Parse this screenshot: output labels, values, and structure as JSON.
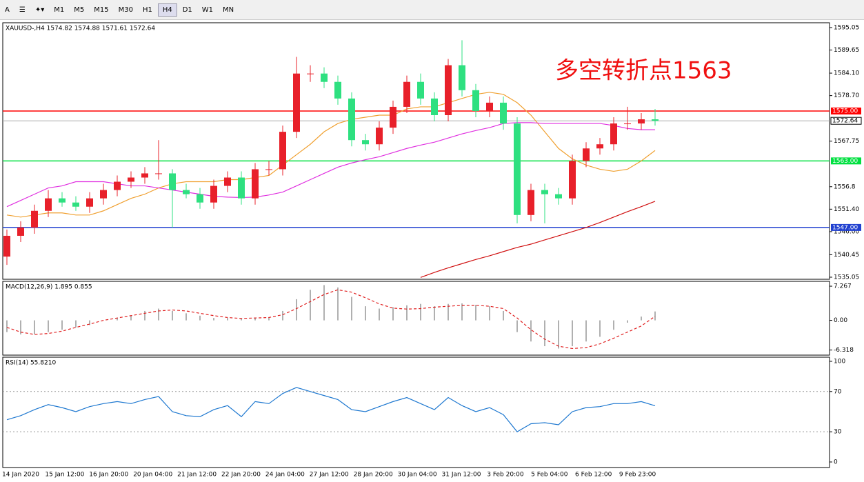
{
  "toolbar": {
    "font": "A",
    "timeframes": [
      "M1",
      "M5",
      "M15",
      "M30",
      "H1",
      "H4",
      "D1",
      "W1",
      "MN"
    ],
    "active": 5
  },
  "chart_data": [
    {
      "type": "candlestick",
      "title": "XAUUSD-,H4 1574.82 1574.88 1571.61 1572.64",
      "annotation": "多空转折点1563",
      "ylim": [
        1534.55,
        1596.21
      ],
      "yticks": [
        1595.05,
        1589.65,
        {
          "value": 1584.1,
          "label": "1584.10"
        },
        {
          "value": 1578.7,
          "label": "1578.70"
        },
        1567.75,
        1556.8,
        {
          "value": 1551.4,
          "label": "1551.40"
        },
        {
          "value": 1546,
          "label": "1546.00"
        },
        1540.45,
        1535.05
      ],
      "open": [
        1540,
        1545,
        1547,
        1551,
        1554,
        1553,
        1552,
        1554,
        1556,
        1558,
        1559,
        1560,
        1560,
        1556,
        1555,
        1553,
        1557,
        1559,
        1554,
        1561,
        1561,
        1570,
        1584,
        1584,
        1582,
        1578,
        1568,
        1567,
        1571,
        1576,
        1582,
        1578,
        1574,
        1586,
        1580,
        1575,
        1577,
        1572,
        1550,
        1556,
        1555,
        1554,
        1563,
        1566,
        1567,
        1572,
        1572,
        1573
      ],
      "high": [
        1546.5,
        1548.5,
        1552.5,
        1556,
        1555.5,
        1554.5,
        1555.5,
        1557.5,
        1559.5,
        1560.5,
        1561.5,
        1568,
        1561,
        1557.5,
        1556.5,
        1558.5,
        1560.5,
        1560.5,
        1562.5,
        1563,
        1571.5,
        1588,
        1586,
        1585.5,
        1583.5,
        1579.5,
        1569.5,
        1572.5,
        1577.5,
        1583.5,
        1584,
        1579.5,
        1587.5,
        1592,
        1581.5,
        1578.5,
        1578.5,
        1573.5,
        1557.5,
        1557.5,
        1556.5,
        1564.5,
        1567.5,
        1568.5,
        1573.5,
        1576,
        1574.5,
        1575.5
      ],
      "low": [
        1538,
        1543.5,
        1545.5,
        1549.5,
        1552,
        1551,
        1550.5,
        1552.5,
        1554.5,
        1556.5,
        1557.5,
        1558.5,
        1547,
        1554,
        1551.5,
        1551.5,
        1555.5,
        1552.5,
        1552.5,
        1559.5,
        1559.5,
        1568.5,
        1582,
        1580.5,
        1576.5,
        1566.5,
        1565.5,
        1565.5,
        1569.5,
        1574.5,
        1576.5,
        1572.5,
        1572.5,
        1578.5,
        1573.5,
        1573.5,
        1570.5,
        1548,
        1548.5,
        1548,
        1552.5,
        1552.5,
        1561.5,
        1564.5,
        1565.5,
        1570.5,
        1570.5,
        1571.5
      ],
      "close": [
        1545,
        1547,
        1551,
        1554,
        1553,
        1552,
        1554,
        1556,
        1558,
        1559,
        1560,
        1560,
        1556,
        1555,
        1553,
        1557,
        1559,
        1554,
        1561,
        1561,
        1570,
        1584,
        1584,
        1582,
        1578,
        1568,
        1567,
        1571,
        1576,
        1582,
        1578,
        1574,
        1586,
        1580,
        1575,
        1577,
        1572,
        1550,
        1556,
        1555,
        1554,
        1563,
        1566,
        1567,
        1572,
        1572,
        1573,
        1572.64
      ],
      "up_color": "#e8202a",
      "down_color": "#2ee080",
      "lines": [
        {
          "color": "#f0a030",
          "values": [
            1550,
            1549.5,
            1550,
            1550.5,
            1550.5,
            1550,
            1550,
            1551,
            1552.5,
            1554,
            1555,
            1556.5,
            1557.5,
            1558,
            1558,
            1558,
            1558.5,
            1558.5,
            1559,
            1559.5,
            1562,
            1564.5,
            1567,
            1570,
            1572,
            1573,
            1573.5,
            1574,
            1574,
            1575.5,
            1576,
            1576,
            1577,
            1578,
            1579,
            1579.5,
            1579,
            1577,
            1574,
            1570,
            1566,
            1563.5,
            1562,
            1561,
            1560.5,
            1561,
            1563,
            1565.5
          ]
        },
        {
          "color": "#e030e0",
          "values": [
            1552,
            1553.5,
            1555,
            1556.5,
            1557,
            1558,
            1558,
            1558,
            1557.5,
            1557,
            1557,
            1556.5,
            1556,
            1555.5,
            1555,
            1554.5,
            1554.3,
            1554.2,
            1554.3,
            1554.8,
            1555.5,
            1557,
            1558.5,
            1560,
            1561.5,
            1562.5,
            1563.3,
            1564,
            1565,
            1566,
            1566.8,
            1567.5,
            1568.5,
            1569.5,
            1570.3,
            1571,
            1572,
            1572.2,
            1572.2,
            1572,
            1572,
            1572,
            1572,
            1572,
            1571.5,
            1570.8,
            1570.5,
            1570.5
          ]
        },
        {
          "color": "#d01010",
          "values": [
            null,
            null,
            null,
            null,
            null,
            null,
            null,
            null,
            null,
            null,
            null,
            null,
            null,
            null,
            null,
            null,
            null,
            null,
            null,
            null,
            null,
            null,
            null,
            null,
            null,
            null,
            null,
            null,
            null,
            null,
            1535,
            1536.2,
            1537.3,
            1538.3,
            1539.3,
            1540.2,
            1541.2,
            1542.2,
            1543,
            1544,
            1545,
            1546,
            1547,
            1548.2,
            1549.5,
            1550.8,
            1552,
            1553.3
          ]
        }
      ],
      "levels": [
        {
          "value": 1575,
          "label": "1575.00",
          "color": "#ff0000"
        },
        {
          "value": 1563,
          "label": "1563.00",
          "color": "#00e040"
        },
        {
          "value": 1547,
          "label": "1547.00",
          "color": "#2040d0"
        }
      ],
      "current": {
        "value": 1572.64,
        "label": "1572.64"
      },
      "x_labels": [
        "14 Jan 2020",
        "15 Jan 12:00",
        "16 Jan 20:00",
        "20 Jan 04:00",
        "21 Jan 12:00",
        "22 Jan 20:00",
        "24 Jan 04:00",
        "27 Jan 12:00",
        "28 Jan 20:00",
        "30 Jan 04:00",
        "31 Jan 12:00",
        "3 Feb 20:00",
        "5 Feb 04:00",
        "6 Feb 12:00",
        "9 Feb 23:00"
      ]
    },
    {
      "type": "macd",
      "title": "MACD(12,26,9) 1.895 0.855",
      "ylim": [
        -7.4,
        8.3
      ],
      "yticks": [
        7.267,
        {
          "value": 0,
          "label": "0.00"
        },
        -6.318
      ],
      "histogram": [
        -2.5,
        -3,
        -3,
        -2.5,
        -2,
        -1.5,
        -1,
        0,
        0.5,
        1,
        2,
        2.5,
        2,
        1.5,
        1,
        0.5,
        0.5,
        0.3,
        0.5,
        0.5,
        2,
        4.5,
        6.5,
        7.5,
        7,
        5,
        3,
        2.5,
        2.8,
        3.2,
        3.5,
        3,
        3.5,
        3.6,
        3.3,
        3,
        2,
        -2.5,
        -4.5,
        -5.5,
        -6,
        -5.5,
        -4.5,
        -3.5,
        -2,
        -0.5,
        0.8,
        1.895
      ],
      "signal": [
        -1.5,
        -2.5,
        -3,
        -2.8,
        -2.3,
        -1.5,
        -0.8,
        0,
        0.5,
        1,
        1.5,
        2,
        2.2,
        2,
        1.5,
        1,
        0.6,
        0.4,
        0.5,
        0.6,
        1.2,
        2.5,
        4,
        5.5,
        6.5,
        6,
        4.8,
        3.5,
        2.6,
        2.4,
        2.5,
        2.8,
        3,
        3.2,
        3.2,
        3,
        2.5,
        0.5,
        -2,
        -4,
        -5.5,
        -6,
        -5.8,
        -5,
        -3.8,
        -2.5,
        -1.2,
        0.855
      ],
      "hist_color": "#b0b0b0",
      "signal_color": "#e02020"
    },
    {
      "type": "line",
      "title": "RSI(14) 55.8210",
      "ylim": [
        -5.5,
        104.1
      ],
      "yticks": [
        100,
        70,
        30,
        0
      ],
      "color": "#1e78d0",
      "values": [
        42,
        46,
        52,
        57,
        54,
        50,
        55,
        58,
        60,
        58,
        62,
        65,
        50,
        46,
        45,
        52,
        56,
        45,
        60,
        58,
        68,
        74,
        70,
        66,
        62,
        52,
        50,
        55,
        60,
        64,
        58,
        52,
        64,
        56,
        50,
        54,
        47,
        30,
        38,
        39,
        37,
        50,
        54,
        55,
        58,
        58,
        60,
        55.821
      ]
    }
  ]
}
